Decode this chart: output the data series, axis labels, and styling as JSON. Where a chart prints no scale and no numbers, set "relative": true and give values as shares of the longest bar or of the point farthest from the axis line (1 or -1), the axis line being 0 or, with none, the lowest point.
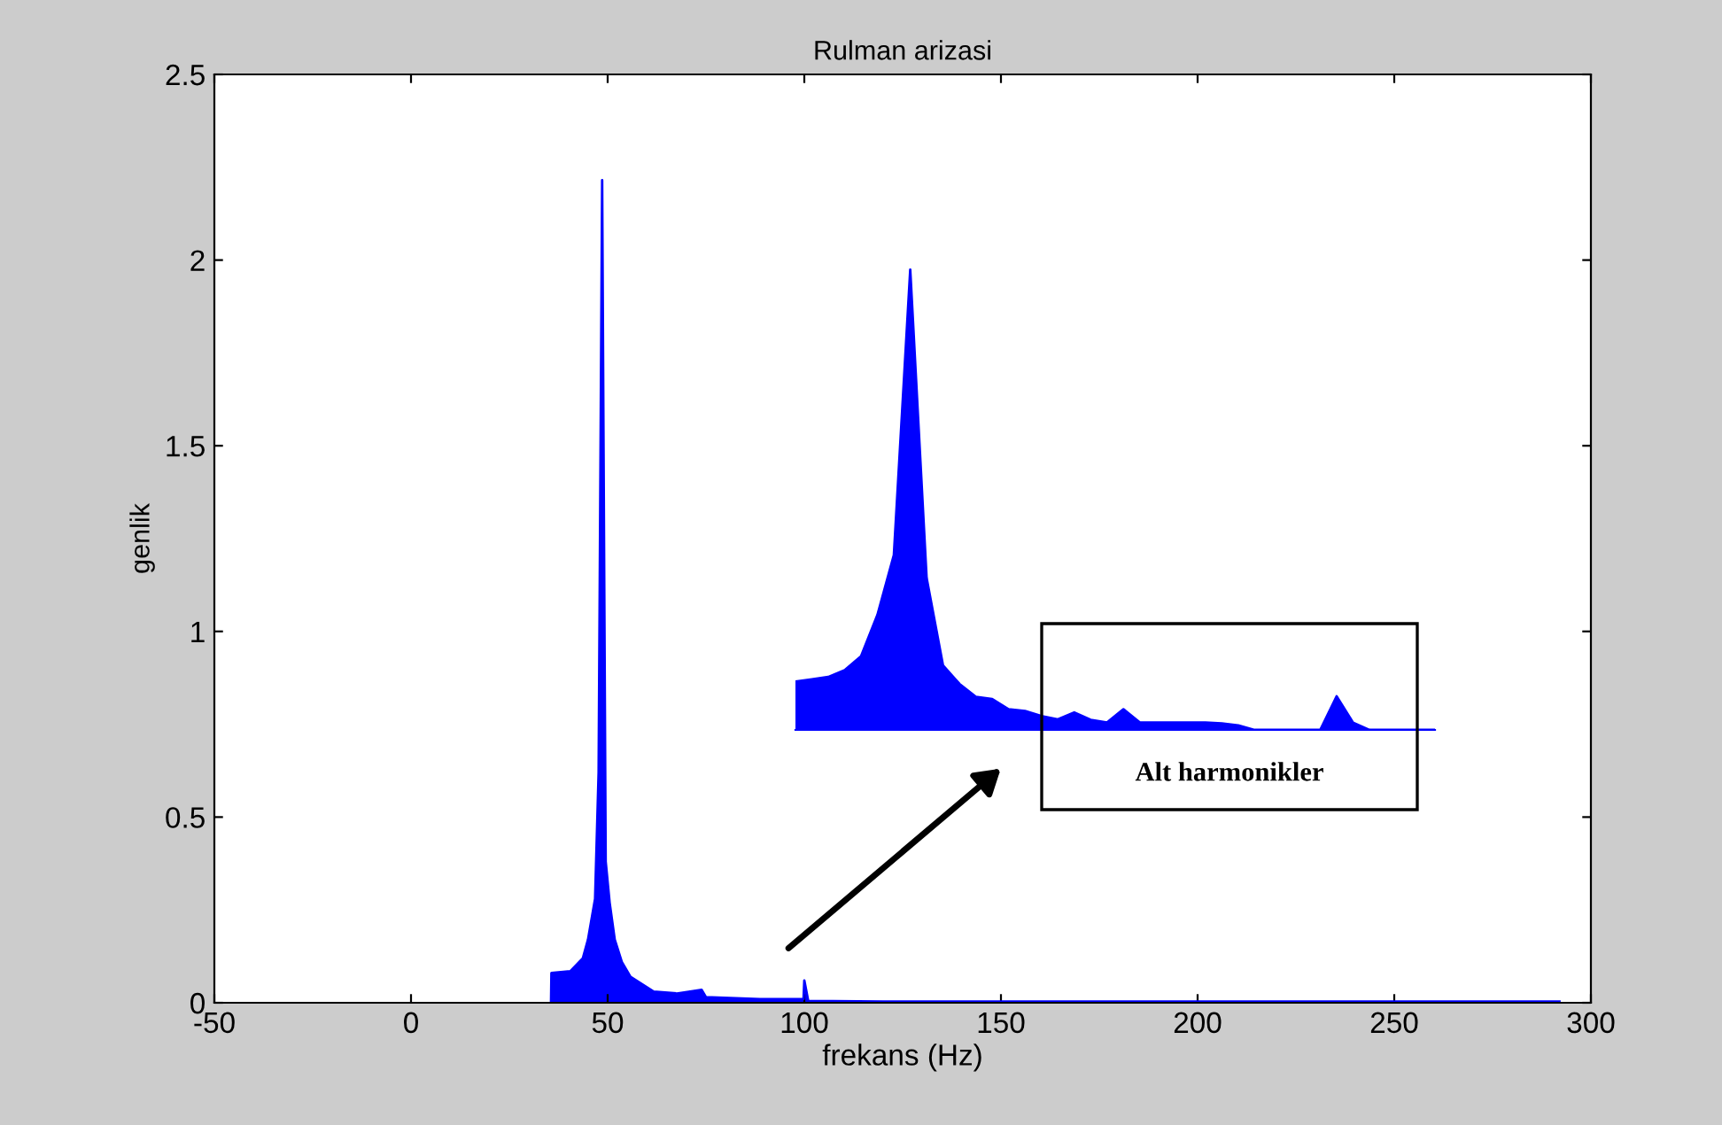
{
  "chart_data": [
    {
      "type": "area",
      "title": "Rulman arizasi",
      "xlabel": "frekans (Hz)",
      "ylabel": "genlik",
      "xlim": [
        -50,
        300
      ],
      "ylim": [
        0,
        2.5
      ],
      "xticks": [
        -50,
        0,
        50,
        100,
        150,
        200,
        250,
        300
      ],
      "yticks": [
        0,
        0.5,
        1,
        1.5,
        2,
        2.5
      ],
      "grid": false,
      "legend": false,
      "series": [
        {
          "color": "#0000ff",
          "x": [
            35.6,
            35.7,
            40.5,
            43.7,
            45,
            46.8,
            47.7,
            48.6,
            49.5,
            50.5,
            51.8,
            53.6,
            55.8,
            61.7,
            67.6,
            73.9,
            75,
            88.7,
            99.8,
            100,
            101,
            120,
            200,
            292
          ],
          "values": [
            0,
            0.08,
            0.085,
            0.12,
            0.17,
            0.28,
            0.62,
            2.215,
            0.38,
            0.27,
            0.17,
            0.11,
            0.07,
            0.03,
            0.025,
            0.035,
            0.015,
            0.01,
            0.01,
            0.06,
            0.005,
            0.003,
            0.003,
            0.003
          ]
        }
      ]
    },
    {
      "type": "area",
      "relative": true,
      "annotations": [
        "Alt harmonikler"
      ],
      "categories": [
        null,
        null,
        null,
        null,
        null,
        null,
        null,
        null,
        null,
        null,
        null,
        null,
        null,
        null,
        null,
        null,
        null,
        null,
        null,
        null,
        null,
        null,
        null,
        null,
        null,
        null,
        null,
        null,
        null,
        null,
        null,
        null,
        null,
        null,
        null,
        null,
        null,
        null,
        null,
        null
      ],
      "series": [
        {
          "color": "#0000ff",
          "values": [
            0.105,
            0.11,
            0.115,
            0.13,
            0.16,
            0.25,
            0.38,
            1.0,
            0.33,
            0.14,
            0.1,
            0.072,
            0.067,
            0.045,
            0.041,
            0.03,
            0.023,
            0.038,
            0.022,
            0.016,
            0.045,
            0.016,
            0.016,
            0.016,
            0.016,
            0.016,
            0.014,
            0.01,
            0,
            0,
            0,
            0,
            0,
            0.073,
            0.016,
            0,
            0,
            0,
            0,
            0
          ]
        }
      ]
    }
  ]
}
